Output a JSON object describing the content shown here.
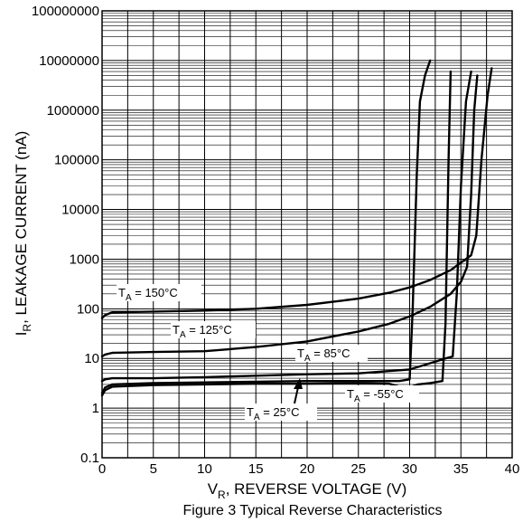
{
  "chart_data": {
    "type": "line",
    "title": "",
    "caption": "Figure 3 Typical Reverse Characteristics",
    "xlabel": {
      "main": "V",
      "sub": "R",
      "rest": ", REVERSE VOLTAGE (V)"
    },
    "ylabel": {
      "main": "I",
      "sub": "R",
      "rest": ", LEAKAGE CURRENT (nA)"
    },
    "xlim": [
      0,
      40
    ],
    "ylim": [
      0.1,
      100000000
    ],
    "yscale": "log",
    "grid": true,
    "x_ticks": [
      "0",
      "5",
      "10",
      "15",
      "20",
      "25",
      "30",
      "35",
      "40"
    ],
    "y_ticks": [
      "0.1",
      "1",
      "10",
      "100",
      "1000",
      "10000",
      "100000",
      "1000000",
      "10000000",
      "100000000"
    ],
    "series": [
      {
        "name": "T_A = 150°C",
        "label": {
          "main": "T",
          "sub": "A",
          "rest": " = 150°C"
        },
        "x": [
          0,
          0.3,
          1,
          5,
          10,
          15,
          20,
          25,
          28,
          30,
          32,
          34,
          35,
          36,
          36.5,
          37,
          37.6,
          38
        ],
        "y": [
          65,
          75,
          85,
          88,
          92,
          100,
          120,
          160,
          210,
          270,
          380,
          600,
          850,
          1200,
          3000,
          100000,
          2000000,
          7000000
        ]
      },
      {
        "name": "T_A = 125°C",
        "label": {
          "main": "T",
          "sub": "A",
          "rest": " = 125°C"
        },
        "x": [
          0,
          0.3,
          1,
          5,
          10,
          15,
          20,
          25,
          28,
          30,
          32,
          34,
          35,
          35.6,
          36,
          36.3,
          36.6
        ],
        "y": [
          11,
          12,
          13,
          13.5,
          14,
          17,
          22,
          35,
          50,
          70,
          110,
          200,
          350,
          700,
          20000,
          1000000,
          5000000
        ]
      },
      {
        "name": "T_A = 85°C",
        "label": {
          "main": "T",
          "sub": "A",
          "rest": " = 85°C"
        },
        "x": [
          0,
          0.3,
          1,
          5,
          10,
          15,
          20,
          25,
          30,
          32,
          33.5,
          34.2,
          34.6,
          35,
          35.5,
          36
        ],
        "y": [
          3.5,
          3.8,
          4,
          4,
          4.2,
          4.5,
          4.8,
          5,
          6,
          8,
          10,
          11,
          200,
          30000,
          1500000,
          6000000
        ]
      },
      {
        "name": "T_A = 25°C",
        "label": {
          "main": "T",
          "sub": "A",
          "rest": " = 25°C"
        },
        "x": [
          0,
          0.3,
          1,
          5,
          10,
          15,
          20,
          25,
          29,
          30,
          30.3,
          30.7,
          31,
          31.5,
          32
        ],
        "y": [
          2,
          2.6,
          3,
          3.2,
          3.3,
          3.4,
          3.5,
          3.5,
          3.5,
          3.8,
          100,
          50000,
          1500000,
          5000000,
          10000000
        ]
      },
      {
        "name": "T_A = -55°C",
        "label": {
          "main": "T",
          "sub": "A",
          "rest": " = -55°C"
        },
        "x": [
          0,
          0.3,
          1,
          5,
          10,
          15,
          20,
          25,
          28,
          29,
          29.5,
          30,
          30.8,
          32,
          33.2,
          33.5,
          33.8,
          34
        ],
        "y": [
          1.8,
          2.3,
          2.7,
          2.9,
          3.0,
          3.1,
          3.1,
          3.2,
          3.1,
          2.7,
          2.5,
          2.6,
          3.0,
          3.2,
          3.5,
          50,
          100000,
          6000000
        ]
      }
    ]
  }
}
